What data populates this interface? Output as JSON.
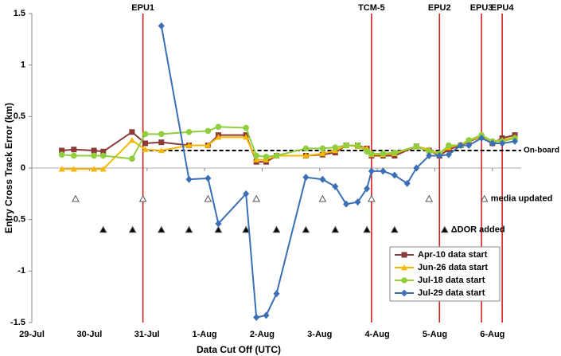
{
  "chart_data": {
    "type": "line",
    "xlabel": "Data Cut Off (UTC)",
    "ylabel": "Entry Cross Track Error (km)",
    "xlim": [
      0,
      8.5
    ],
    "xticks": [
      {
        "value": 0,
        "label": "29-Jul"
      },
      {
        "value": 1,
        "label": "30-Jul"
      },
      {
        "value": 2,
        "label": "31-Jul"
      },
      {
        "value": 3,
        "label": "1-Aug"
      },
      {
        "value": 4,
        "label": "2-Aug"
      },
      {
        "value": 5,
        "label": "3-Aug"
      },
      {
        "value": 6,
        "label": "4-Aug"
      },
      {
        "value": 7,
        "label": "5-Aug"
      },
      {
        "value": 8,
        "label": "6-Aug"
      }
    ],
    "ylim": [
      -1.5,
      1.5
    ],
    "yticks": [
      -1.5,
      -1,
      -0.5,
      0,
      0.5,
      1,
      1.5
    ],
    "grid": false,
    "legend": "lower right",
    "series": [
      {
        "name": "Apr-10 data start",
        "color": "#8b3a3a",
        "marker": "square",
        "x": [
          0.52,
          0.73,
          1.08,
          1.24,
          1.74,
          1.97,
          2.25,
          2.73,
          3.06,
          3.24,
          3.72,
          3.9,
          4.07,
          4.25,
          4.76,
          5.05,
          5.27,
          5.46,
          5.66,
          5.82,
          5.9,
          6.1,
          6.3,
          6.68,
          6.9,
          7.08,
          7.24,
          7.45,
          7.59,
          7.81,
          8.0,
          8.17,
          8.39
        ],
        "values": [
          0.17,
          0.18,
          0.17,
          0.16,
          0.35,
          0.24,
          0.25,
          0.22,
          0.22,
          0.32,
          0.32,
          0.06,
          0.06,
          0.12,
          0.12,
          0.13,
          0.15,
          0.22,
          0.22,
          0.19,
          0.12,
          0.12,
          0.12,
          0.21,
          0.17,
          0.12,
          0.18,
          0.22,
          0.26,
          0.3,
          0.24,
          0.29,
          0.32
        ]
      },
      {
        "name": "Jun-26 data start",
        "color": "#f5b800",
        "marker": "triangle",
        "x": [
          0.52,
          0.73,
          1.08,
          1.24,
          1.74,
          1.97,
          2.25,
          2.73,
          3.06,
          3.24,
          3.72,
          3.9,
          4.07,
          4.25,
          4.76,
          5.05,
          5.27,
          5.46,
          5.66,
          5.82,
          5.9,
          6.1,
          6.3,
          6.68,
          6.9,
          7.08,
          7.24,
          7.45,
          7.59,
          7.81,
          8.0,
          8.17,
          8.39
        ],
        "values": [
          -0.01,
          -0.01,
          -0.01,
          -0.01,
          0.27,
          0.18,
          0.17,
          0.22,
          0.22,
          0.3,
          0.3,
          0.08,
          0.08,
          0.12,
          0.12,
          0.14,
          0.17,
          0.22,
          0.21,
          0.19,
          0.13,
          0.13,
          0.14,
          0.21,
          0.18,
          0.14,
          0.2,
          0.23,
          0.27,
          0.3,
          0.26,
          0.27,
          0.3
        ]
      },
      {
        "name": "Jul-18 data start",
        "color": "#8fcf3c",
        "marker": "circle",
        "x": [
          0.52,
          0.73,
          1.08,
          1.24,
          1.74,
          1.97,
          2.25,
          2.73,
          3.06,
          3.24,
          3.72,
          3.9,
          4.07,
          4.25,
          4.76,
          5.05,
          5.27,
          5.46,
          5.66,
          5.82,
          5.9,
          6.1,
          6.3,
          6.68,
          6.9,
          7.08,
          7.24,
          7.45,
          7.59,
          7.81,
          8.0,
          8.17,
          8.39
        ],
        "values": [
          0.13,
          0.12,
          0.12,
          0.12,
          0.09,
          0.33,
          0.33,
          0.35,
          0.36,
          0.4,
          0.39,
          0.12,
          0.11,
          0.12,
          0.19,
          0.19,
          0.2,
          0.22,
          0.22,
          0.16,
          0.14,
          0.14,
          0.15,
          0.21,
          0.16,
          0.14,
          0.22,
          0.22,
          0.27,
          0.32,
          0.26,
          0.26,
          0.29
        ]
      },
      {
        "name": "Jul-29 data start",
        "color": "#3a6fb5",
        "marker": "diamond",
        "x": [
          2.25,
          2.73,
          3.06,
          3.24,
          3.72,
          3.9,
          4.07,
          4.25,
          4.76,
          5.05,
          5.27,
          5.46,
          5.66,
          5.82,
          5.9,
          6.1,
          6.3,
          6.52,
          6.68,
          6.9,
          7.08,
          7.24,
          7.45,
          7.59,
          7.81,
          8.0,
          8.17,
          8.39
        ],
        "values": [
          1.38,
          -0.11,
          -0.1,
          -0.54,
          -0.25,
          -1.45,
          -1.43,
          -1.22,
          -0.09,
          -0.11,
          -0.18,
          -0.35,
          -0.33,
          -0.2,
          -0.03,
          -0.03,
          -0.07,
          -0.15,
          0.0,
          0.12,
          0.12,
          0.13,
          0.22,
          0.22,
          0.29,
          0.24,
          0.24,
          0.26
        ]
      }
    ],
    "events": [
      {
        "label": "EPU1",
        "x": 1.93,
        "color": "#d62020"
      },
      {
        "label": "TCM-5",
        "x": 5.9,
        "color": "#d62020"
      },
      {
        "label": "EPU2",
        "x": 7.08,
        "color": "#d62020"
      },
      {
        "label": "EPU3",
        "x": 7.81,
        "color": "#d62020"
      },
      {
        "label": "EPU4",
        "x": 8.17,
        "color": "#d62020"
      }
    ],
    "onboard": {
      "label": "On-board",
      "value": 0.17
    },
    "media_updated": {
      "label": "media updated",
      "y": -0.3,
      "x": [
        0.76,
        1.93,
        3.06,
        3.9,
        5.05,
        5.9,
        6.9,
        7.86
      ]
    },
    "dor_added": {
      "label": "ΔDOR added",
      "y": -0.6,
      "x": [
        1.24,
        1.75,
        2.25,
        2.73,
        3.24,
        3.72,
        4.25,
        4.76,
        5.27,
        5.82,
        6.3,
        7.17
      ]
    }
  }
}
